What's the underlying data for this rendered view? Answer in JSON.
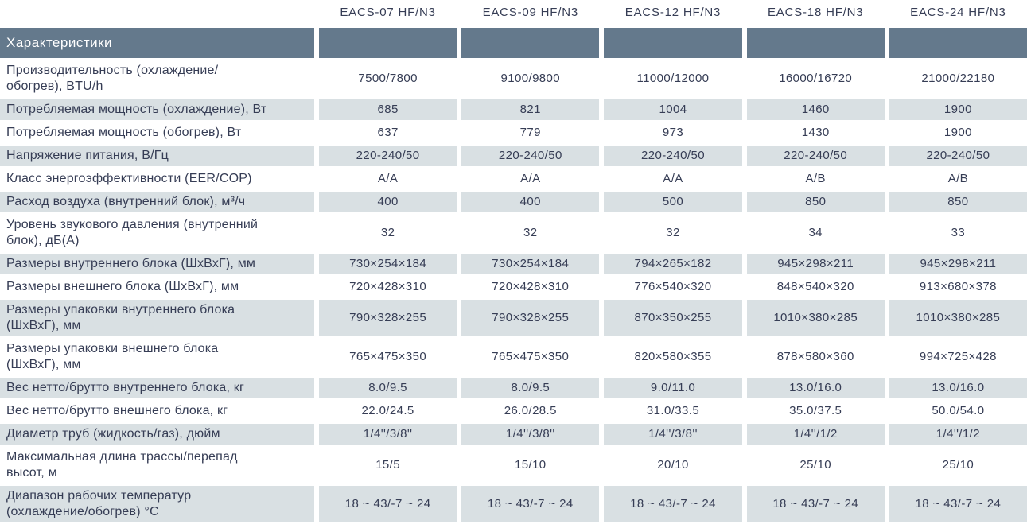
{
  "colors": {
    "band": "#64798c",
    "stripe": "#d9e0e3",
    "text": "#363d55",
    "band-text": "#ffffff"
  },
  "table": {
    "corner_label": "Характеристики",
    "models": [
      "EACS-07 HF/N3",
      "EACS-09 HF/N3",
      "EACS-12 HF/N3",
      "EACS-18 HF/N3",
      "EACS-24 HF/N3"
    ],
    "rows": [
      {
        "label": "Производительность (охлаждение/\nобогрев), BTU/h",
        "values": [
          "7500/7800",
          "9100/9800",
          "11000/12000",
          "16000/16720",
          "21000/22180"
        ]
      },
      {
        "label": "Потребляемая мощность (охлаждение), Вт",
        "values": [
          "685",
          "821",
          "1004",
          "1460",
          "1900"
        ]
      },
      {
        "label": "Потребляемая мощность (обогрев), Вт",
        "values": [
          "637",
          "779",
          "973",
          "1430",
          "1900"
        ]
      },
      {
        "label": "Напряжение питания, В/Гц",
        "values": [
          "220-240/50",
          "220-240/50",
          "220-240/50",
          "220-240/50",
          "220-240/50"
        ]
      },
      {
        "label": "Класс энергоэффективности (EER/COP)",
        "values": [
          "A/A",
          "A/A",
          "A/A",
          "A/B",
          "A/B"
        ]
      },
      {
        "label": "Расход воздуха (внутренний блок), м³/ч",
        "values": [
          "400",
          "400",
          "500",
          "850",
          "850"
        ]
      },
      {
        "label": "Уровень звукового давления (внутренний\nблок), дБ(А)",
        "values": [
          "32",
          "32",
          "32",
          "34",
          "33"
        ]
      },
      {
        "label": "Размеры внутреннего блока (ШхВхГ), мм",
        "values": [
          "730×254×184",
          "730×254×184",
          "794×265×182",
          "945×298×211",
          "945×298×211"
        ]
      },
      {
        "label": "Размеры внешнего блока (ШхВхГ), мм",
        "values": [
          "720×428×310",
          "720×428×310",
          "776×540×320",
          "848×540×320",
          "913×680×378"
        ]
      },
      {
        "label": "Размеры упаковки внутреннего блока\n(ШхВхГ), мм",
        "values": [
          "790×328×255",
          "790×328×255",
          "870×350×255",
          "1010×380×285",
          "1010×380×285"
        ]
      },
      {
        "label": "Размеры упаковки внешнего блока\n(ШхВхГ), мм",
        "values": [
          "765×475×350",
          "765×475×350",
          "820×580×355",
          "878×580×360",
          "994×725×428"
        ]
      },
      {
        "label": "Вес нетто/брутто внутреннего блока, кг",
        "values": [
          "8.0/9.5",
          "8.0/9.5",
          "9.0/11.0",
          "13.0/16.0",
          "13.0/16.0"
        ]
      },
      {
        "label": "Вес нетто/брутто внешнего блока, кг",
        "values": [
          "22.0/24.5",
          "26.0/28.5",
          "31.0/33.5",
          "35.0/37.5",
          "50.0/54.0"
        ]
      },
      {
        "label": "Диаметр труб (жидкость/газ), дюйм",
        "values": [
          "1/4''/3/8''",
          "1/4''/3/8''",
          "1/4''/3/8''",
          "1/4''/1/2",
          "1/4''/1/2"
        ]
      },
      {
        "label": "Максимальная длина трассы/перепад\nвысот, м",
        "values": [
          "15/5",
          "15/10",
          "20/10",
          "25/10",
          "25/10"
        ]
      },
      {
        "label": "Диапазон рабочих температур\n(охлаждение/обогрев) °С",
        "values": [
          "18 ~ 43/-7 ~ 24",
          "18 ~ 43/-7 ~ 24",
          "18 ~ 43/-7 ~ 24",
          "18 ~ 43/-7 ~ 24",
          "18 ~ 43/-7 ~ 24"
        ]
      }
    ]
  }
}
